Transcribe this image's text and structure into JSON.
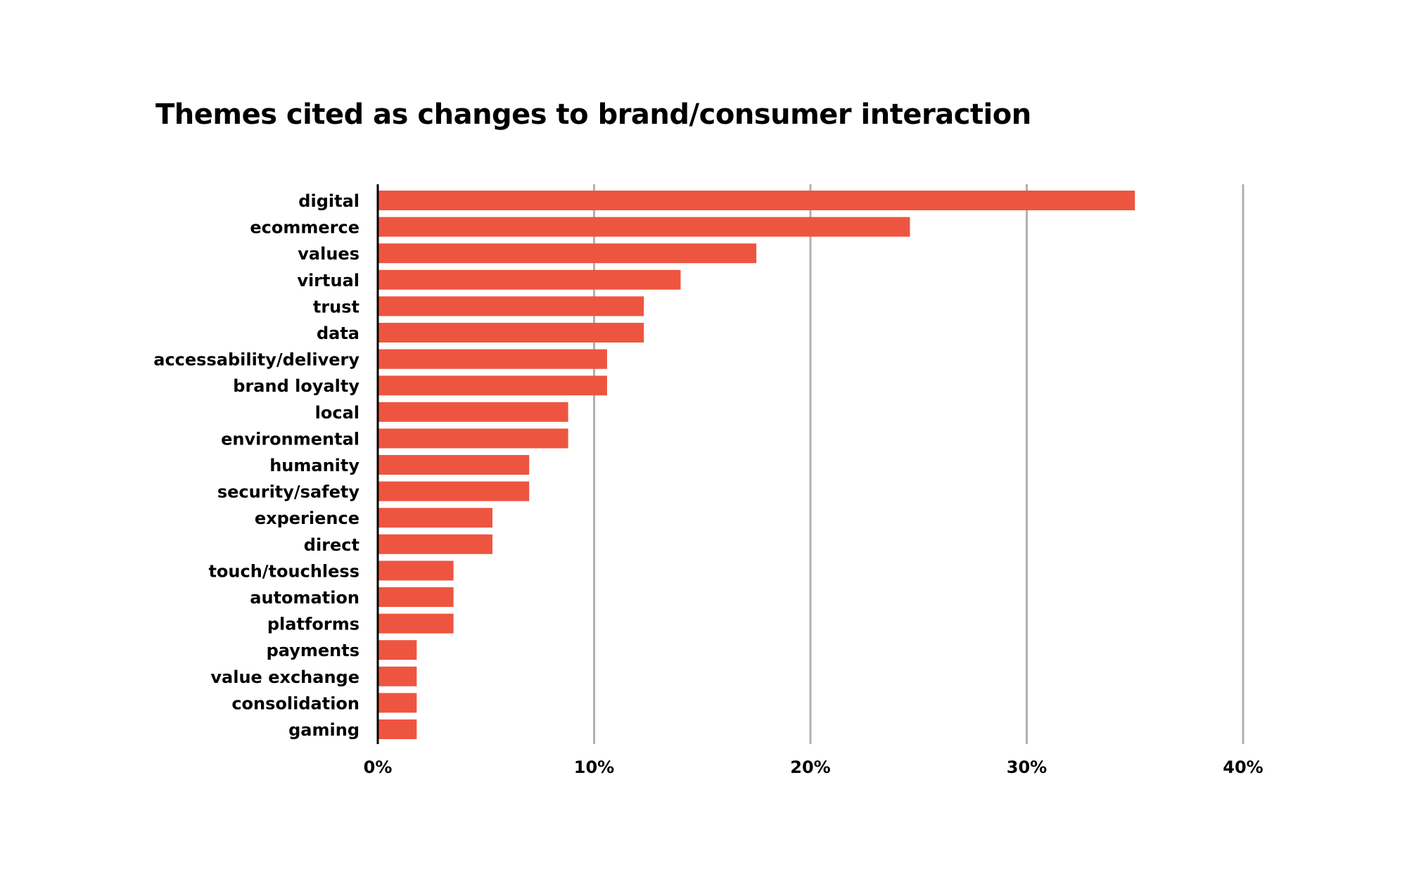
{
  "chart_data": {
    "type": "bar",
    "orientation": "horizontal",
    "title": "Themes cited as changes to brand/consumer interaction",
    "xlabel": "",
    "ylabel": "",
    "categories": [
      "digital",
      "ecommerce",
      "values",
      "virtual",
      "trust",
      "data",
      "accessability/delivery",
      "brand loyalty",
      "local",
      "environmental",
      "humanity",
      "security/safety",
      "experience",
      "direct",
      "touch/touchless",
      "automation",
      "platforms",
      "payments",
      "value exchange",
      "consolidation",
      "gaming"
    ],
    "values": [
      35.0,
      24.6,
      17.5,
      14.0,
      12.3,
      12.3,
      10.6,
      10.6,
      8.8,
      8.8,
      7.0,
      7.0,
      5.3,
      5.3,
      3.5,
      3.5,
      3.5,
      1.8,
      1.8,
      1.8,
      1.8
    ],
    "xlim": [
      0,
      40
    ],
    "xticks": [
      0,
      10,
      20,
      30,
      40
    ],
    "xtick_labels": [
      "0%",
      "10%",
      "20%",
      "30%",
      "40%"
    ],
    "grid": true,
    "legend": "none",
    "colors": {
      "bar": "#EE5540",
      "grid": "#B0B0B0",
      "axis": "#000000",
      "text": "#000000"
    }
  }
}
